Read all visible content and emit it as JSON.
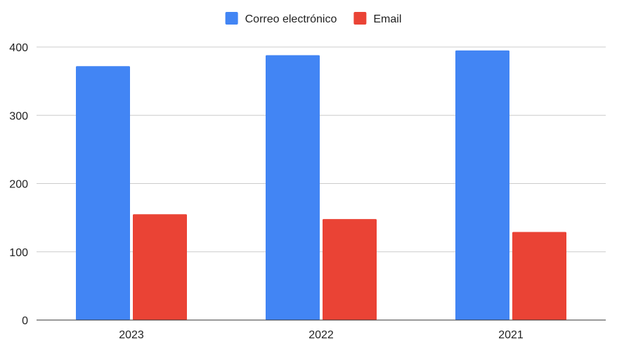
{
  "chart_data": {
    "type": "bar",
    "categories": [
      "2023",
      "2022",
      "2021"
    ],
    "series": [
      {
        "name": "Correo electrónico",
        "color": "#4285f4",
        "values": [
          372,
          388,
          395
        ]
      },
      {
        "name": "Email",
        "color": "#ea4335",
        "values": [
          155,
          148,
          129
        ]
      }
    ],
    "ylim": [
      0,
      400
    ],
    "yticks": [
      0,
      100,
      200,
      300,
      400
    ],
    "grid": true,
    "legend_position": "top-center"
  }
}
